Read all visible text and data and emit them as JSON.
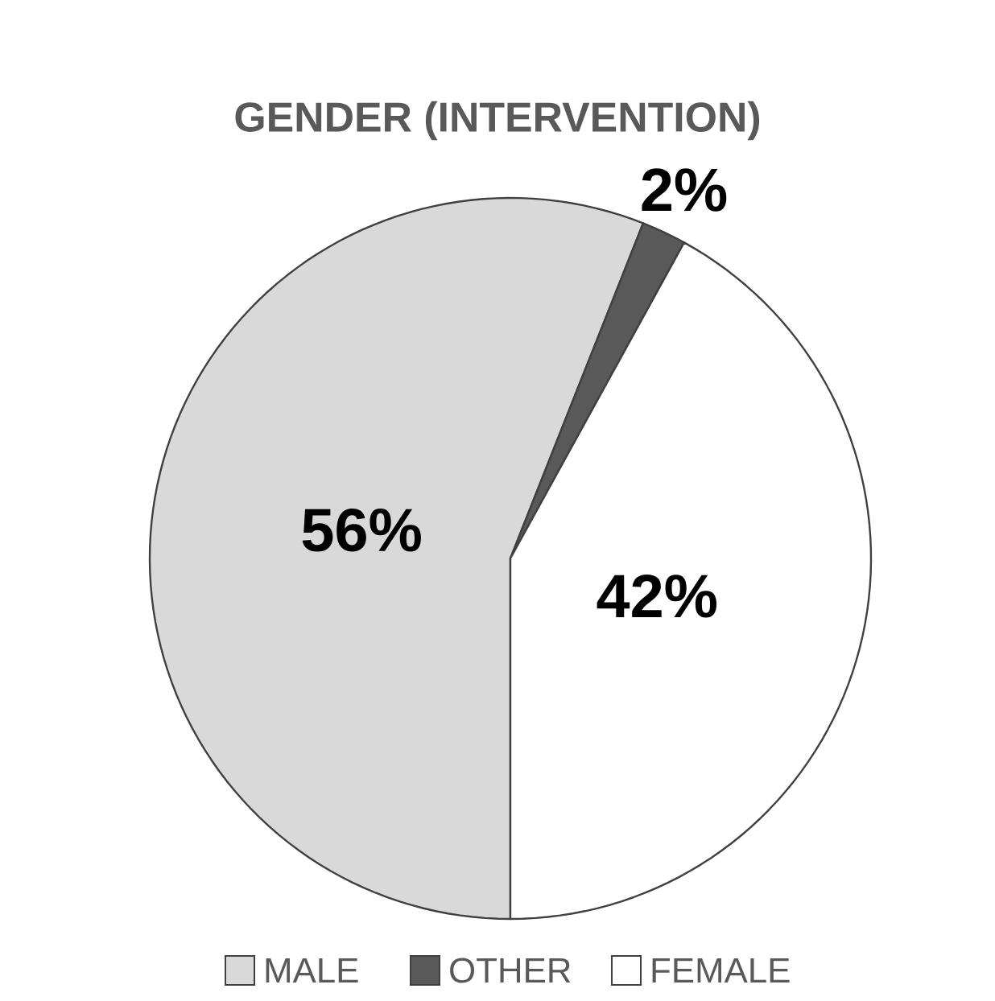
{
  "chart_data": {
    "type": "pie",
    "title": "GENDER (INTERVENTION)",
    "categories": [
      "MALE",
      "OTHER",
      "FEMALE"
    ],
    "values": [
      56,
      2,
      42
    ],
    "colors": [
      "#d9d9d9",
      "#595959",
      "#ffffff"
    ],
    "value_labels": [
      "56%",
      "2%",
      "42%"
    ],
    "legend": "bottom"
  }
}
